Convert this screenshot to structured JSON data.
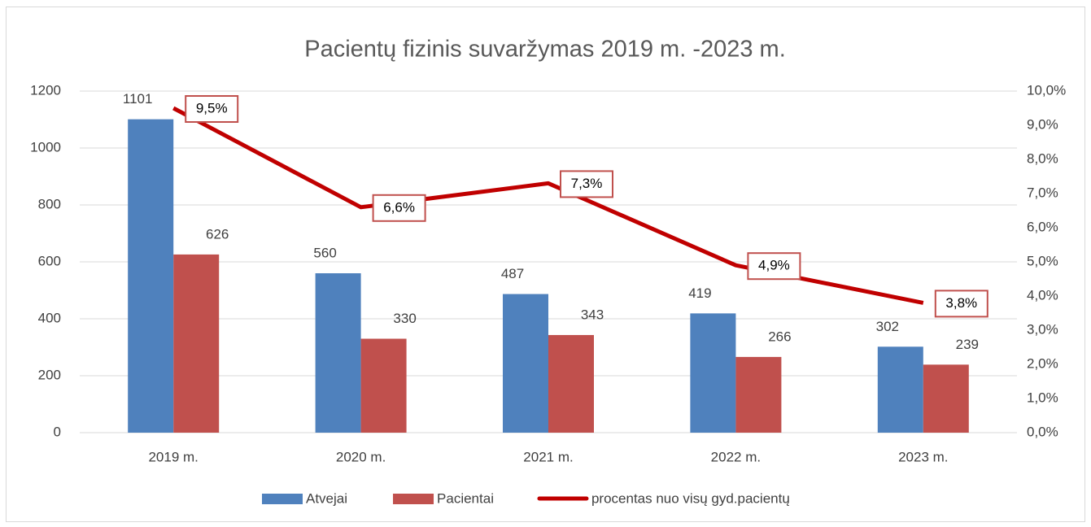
{
  "chart_data": {
    "type": "bar",
    "title": "Pacientų fizinis suvaržymas 2019 m. -2023 m.",
    "categories": [
      "2019 m.",
      "2020 m.",
      "2021 m.",
      "2022 m.",
      "2023 m."
    ],
    "series": [
      {
        "name": "Atvejai",
        "color": "#4f81bd",
        "values": [
          1101,
          560,
          487,
          419,
          302
        ]
      },
      {
        "name": "Pacientai",
        "color": "#c0504d",
        "values": [
          626,
          330,
          343,
          266,
          239
        ]
      },
      {
        "name": "procentas nuo visų gyd.pacientų",
        "color": "#c00000",
        "type": "line",
        "axis": "y2",
        "values": [
          9.5,
          6.6,
          7.3,
          4.9,
          3.8
        ],
        "value_labels": [
          "9,5%",
          "6,6%",
          "7,3%",
          "4,9%",
          "3,8%"
        ]
      }
    ],
    "ylim": [
      0,
      1200
    ],
    "yticks": [
      0,
      200,
      400,
      600,
      800,
      1000,
      1200
    ],
    "y2lim": [
      0,
      10
    ],
    "y2ticks": [
      {
        "value": 0,
        "label": "0,0%"
      },
      {
        "value": 1,
        "label": "1,0%"
      },
      {
        "value": 2,
        "label": "2,0%"
      },
      {
        "value": 3,
        "label": "3,0%"
      },
      {
        "value": 4,
        "label": "4,0%"
      },
      {
        "value": 5,
        "label": "5,0%"
      },
      {
        "value": 6,
        "label": "6,0%"
      },
      {
        "value": 7,
        "label": "7,0%"
      },
      {
        "value": 8,
        "label": "8,0%"
      },
      {
        "value": 9,
        "label": "9,0%"
      },
      {
        "value": 10,
        "label": "10,0%"
      }
    ],
    "grid": true,
    "legend": "bottom"
  }
}
